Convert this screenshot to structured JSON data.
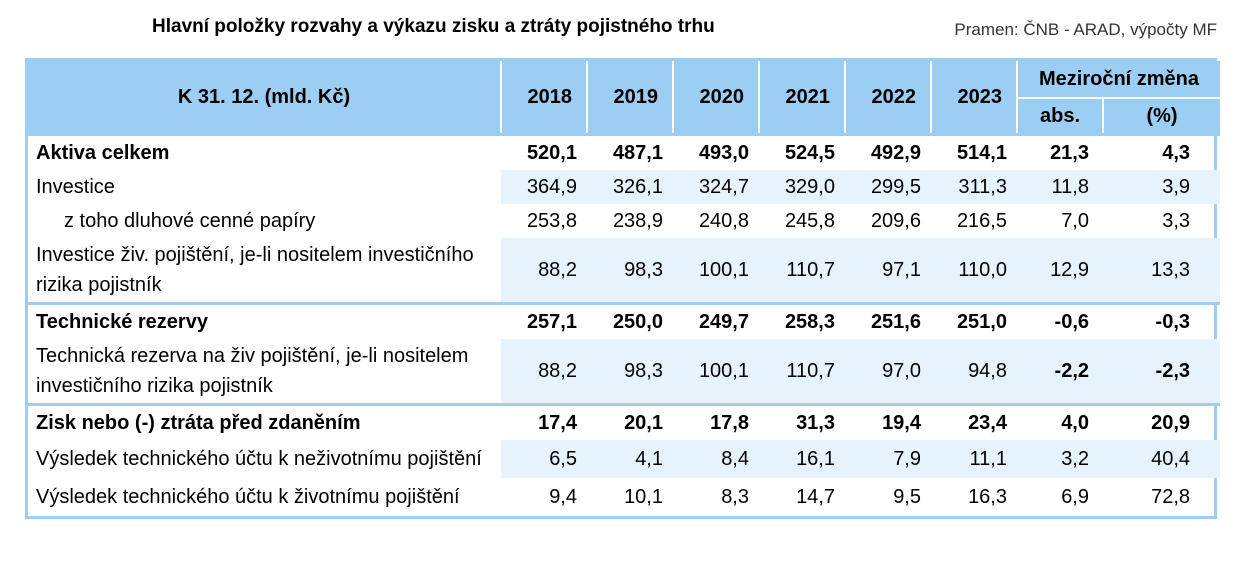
{
  "title": "Hlavní položky rozvahy a výkazu zisku a ztráty pojistného trhu",
  "source": "Pramen: ČNB - ARAD, výpočty MF",
  "header": {
    "label": "K 31. 12. (mld. Kč)",
    "years": [
      "2018",
      "2019",
      "2020",
      "2021",
      "2022",
      "2023"
    ],
    "group": "Meziroční změna",
    "sub_abs": "abs.",
    "sub_pct": "(%)"
  },
  "rows": [
    {
      "label": "Aktiva celkem",
      "values": [
        "520,1",
        "487,1",
        "493,0",
        "524,5",
        "492,9",
        "514,1",
        "21,3",
        "4,3"
      ]
    },
    {
      "label": "Investice",
      "values": [
        "364,9",
        "326,1",
        "324,7",
        "329,0",
        "299,5",
        "311,3",
        "11,8",
        "3,9"
      ]
    },
    {
      "label": "z toho dluhové cenné papíry",
      "values": [
        "253,8",
        "238,9",
        "240,8",
        "245,8",
        "209,6",
        "216,5",
        "7,0",
        "3,3"
      ]
    },
    {
      "label": "Investice živ. pojištění, je-li nositelem investičního rizika pojistník",
      "values": [
        "88,2",
        "98,3",
        "100,1",
        "110,7",
        "97,1",
        "110,0",
        "12,9",
        "13,3"
      ]
    },
    {
      "label": "Technické rezervy",
      "values": [
        "257,1",
        "250,0",
        "249,7",
        "258,3",
        "251,6",
        "251,0",
        "-0,6",
        "-0,3"
      ]
    },
    {
      "label": "Technická rezerva na živ pojištění, je-li nositelem investičního rizika pojistník",
      "values": [
        "88,2",
        "98,3",
        "100,1",
        "110,7",
        "97,0",
        "94,8",
        "-2,2",
        "-2,3"
      ]
    },
    {
      "label": "Zisk nebo (-) ztráta před zdaněním",
      "values": [
        "17,4",
        "20,1",
        "17,8",
        "31,3",
        "19,4",
        "23,4",
        "4,0",
        "20,9"
      ]
    },
    {
      "label": "Výsledek technického účtu k neživotnímu pojištění",
      "values": [
        "6,5",
        "4,1",
        "8,4",
        "16,1",
        "7,9",
        "11,1",
        "3,2",
        "40,4"
      ]
    },
    {
      "label": "Výsledek technického účtu k životnímu pojištění",
      "values": [
        "9,4",
        "10,1",
        "8,3",
        "14,7",
        "9,5",
        "16,3",
        "6,9",
        "72,8"
      ]
    }
  ]
}
